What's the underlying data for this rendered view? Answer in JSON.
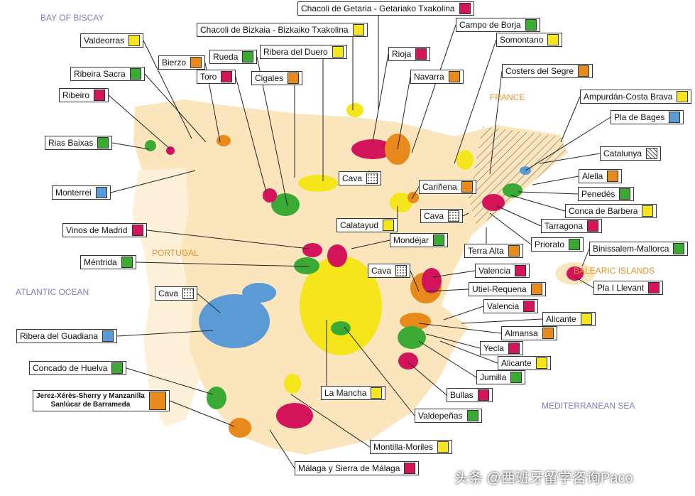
{
  "seas": [
    {
      "text": "BAY OF BISCAY",
      "color": "#7a80c2"
    },
    {
      "text": "FRANCE",
      "color": "#e0922a"
    },
    {
      "text": "PORTUGAL",
      "color": "#e0922a"
    },
    {
      "text": "ATLANTIC OCEAN",
      "color": "#7a80c2"
    },
    {
      "text": "BALEARIC ISLANDS",
      "color": "#e0922a"
    },
    {
      "text": "MEDITERRANEAN SEA",
      "color": "#7a80c2"
    }
  ],
  "labels": [
    {
      "text": "Chacoli de Getaria - Getariako Txakolina",
      "color": "#d4145a"
    },
    {
      "text": "Campo de Borja",
      "color": "#3aaa35"
    },
    {
      "text": "Chacoli de Bizkaia - Bizkaiko Txakolina",
      "color": "#f5e51b"
    },
    {
      "text": "Valdeorras",
      "color": "#f5e51b"
    },
    {
      "text": "Somontano",
      "color": "#f5e51b"
    },
    {
      "text": "Rueda",
      "color": "#3aaa35"
    },
    {
      "text": "Ribera del Duero",
      "color": "#f5e51b"
    },
    {
      "text": "Rioja",
      "color": "#d4145a"
    },
    {
      "text": "Bierzo",
      "color": "#e8891c"
    },
    {
      "text": "Ribeira Sacra",
      "color": "#3aaa35"
    },
    {
      "text": "Toro",
      "color": "#d4145a"
    },
    {
      "text": "Cigales",
      "color": "#e8891c"
    },
    {
      "text": "Navarra",
      "color": "#e8891c"
    },
    {
      "text": "Costers del Segre",
      "color": "#e8891c"
    },
    {
      "text": "Ribeiro",
      "color": "#d4145a"
    },
    {
      "text": "Ampurdán-Costa Brava",
      "color": "#f5e51b"
    },
    {
      "text": "Pla de Bages",
      "color": "#5b9bd5"
    },
    {
      "text": "Rias Baixas",
      "color": "#3aaa35"
    },
    {
      "text": "Catalunya",
      "color": "hatch"
    },
    {
      "text": "Cava",
      "color": "dots"
    },
    {
      "text": "Alella",
      "color": "#e8891c"
    },
    {
      "text": "Cariñena",
      "color": "#e8891c"
    },
    {
      "text": "Monterrei",
      "color": "#5b9bd5"
    },
    {
      "text": "Penedés",
      "color": "#3aaa35"
    },
    {
      "text": "Conca de Barbera",
      "color": "#f5e51b"
    },
    {
      "text": "Cava",
      "color": "dots"
    },
    {
      "text": "Calatayud",
      "color": "#f5e51b"
    },
    {
      "text": "Tarragona",
      "color": "#d4145a"
    },
    {
      "text": "Vinos de Madrid",
      "color": "#d4145a"
    },
    {
      "text": "Mondéjar",
      "color": "#3aaa35"
    },
    {
      "text": "Priorato",
      "color": "#3aaa35"
    },
    {
      "text": "Terra Alta",
      "color": "#e8891c"
    },
    {
      "text": "Binissalem-Mallorca",
      "color": "#3aaa35"
    },
    {
      "text": "Méntrida",
      "color": "#3aaa35"
    },
    {
      "text": "Valencia",
      "color": "#d4145a"
    },
    {
      "text": "Cava",
      "color": "dots"
    },
    {
      "text": "Pla I Llevant",
      "color": "#d4145a"
    },
    {
      "text": "Utiel-Requena",
      "color": "#e8891c"
    },
    {
      "text": "Cava",
      "color": "dots"
    },
    {
      "text": "Valencia",
      "color": "#d4145a"
    },
    {
      "text": "Alicante",
      "color": "#f5e51b"
    },
    {
      "text": "Almansa",
      "color": "#e8891c"
    },
    {
      "text": "Ribera del Guadiana",
      "color": "#5b9bd5"
    },
    {
      "text": "Yecla",
      "color": "#d4145a"
    },
    {
      "text": "Alicante",
      "color": "#f5e51b"
    },
    {
      "text": "Concado de Huelva",
      "color": "#3aaa35"
    },
    {
      "text": "Jumilla",
      "color": "#3aaa35"
    },
    {
      "text": "Bullas",
      "color": "#d4145a"
    },
    {
      "text": "La Mancha",
      "color": "#f5e51b"
    },
    {
      "lines": [
        "Jerez-Xérès-Sherry y Manzanilla",
        "Sanlúcar de Barrameda"
      ],
      "color": "#e8891c"
    },
    {
      "text": "Valdepeñas",
      "color": "#3aaa35"
    },
    {
      "text": "Montilla-Moriles",
      "color": "#f5e51b"
    },
    {
      "text": "Málaga y Sierra de Málaga",
      "color": "#d4145a"
    }
  ],
  "watermark": "头条 @西班牙留学咨询Paco"
}
